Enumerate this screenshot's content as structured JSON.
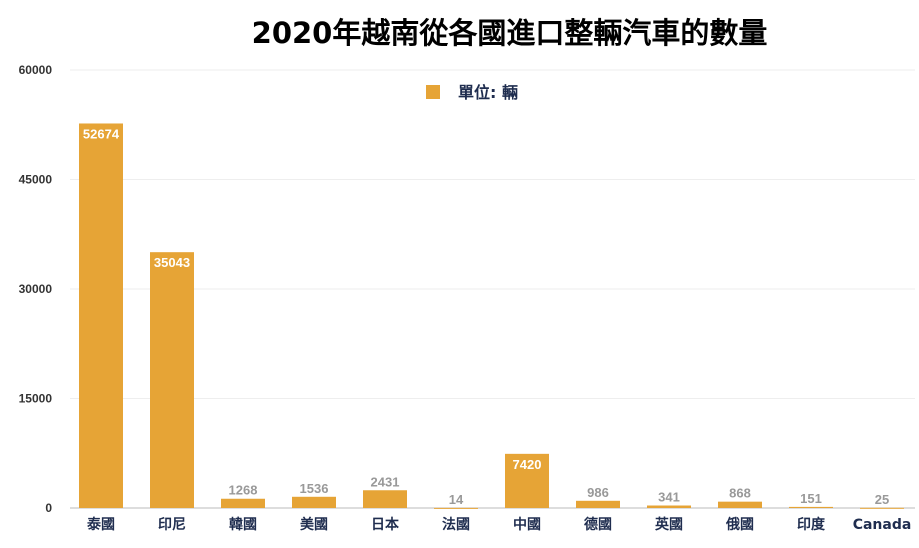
{
  "chart_data": {
    "type": "bar",
    "title": "2020年越南從各國進口整輛汽車的數量",
    "categories": [
      "泰國",
      "印尼",
      "韓國",
      "美國",
      "日本",
      "法國",
      "中國",
      "德國",
      "英國",
      "俄國",
      "印度",
      "Canada"
    ],
    "series": [
      {
        "name": "單位: 輛",
        "values": [
          52674,
          35043,
          1268,
          1536,
          2431,
          14,
          7420,
          986,
          341,
          868,
          151,
          25
        ]
      }
    ],
    "ylim": [
      0,
      60000
    ],
    "yticks": [
      0,
      15000,
      30000,
      45000,
      60000
    ],
    "grid": true,
    "legend": "top-center",
    "color": "#E6A436"
  }
}
